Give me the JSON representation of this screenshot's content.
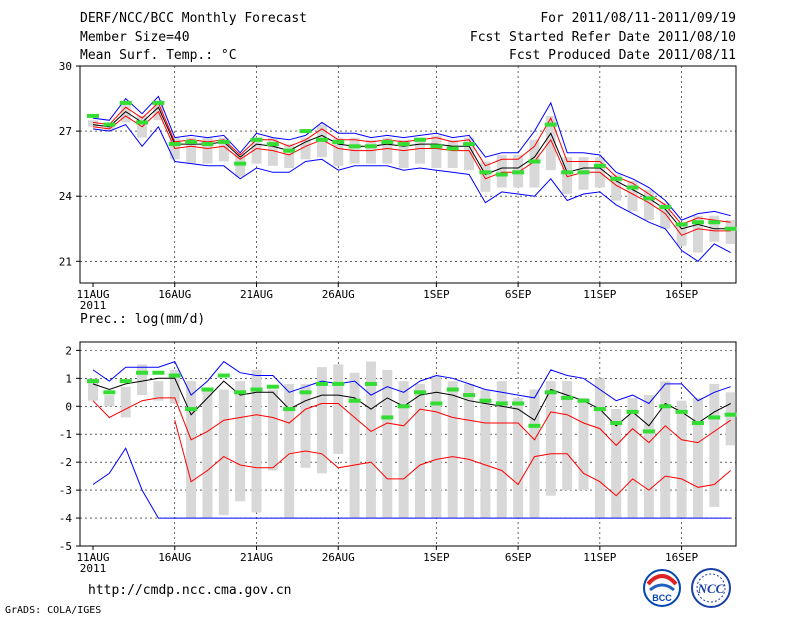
{
  "header": {
    "title": "DERF/NCC/BCC Monthly Forecast",
    "member_size": "Member Size=40",
    "variable": "Mean Surf. Temp.: °C",
    "forecast_period": "For 2011/08/11-2011/09/19",
    "started_date": "Fcst Started Refer Date 2011/08/10",
    "produced_date": "Fcst Produced Date 2011/08/11"
  },
  "footer": {
    "url": "http://cmdp.ncc.cma.gov.cn",
    "credit": "GrADS: COLA/IGES",
    "logo_bcc": "BCC",
    "logo_ncc": "NCC"
  },
  "colors": {
    "ensemble_mean": "#000000",
    "upper_lower": "#0000ff",
    "spread": "#ff0000",
    "box": "#d8d8d8",
    "median": "#33dd33"
  },
  "chart_data": [
    {
      "type": "line",
      "id": "temp",
      "title": "",
      "ylabel": "Mean Surf. Temp.: °C",
      "ylim": [
        20,
        30
      ],
      "yticks": [
        21,
        24,
        27,
        30
      ],
      "xtick_labels": [
        "11AUG",
        "16AUG",
        "21AUG",
        "26AUG",
        "1SEP",
        "6SEP",
        "11SEP",
        "16SEP"
      ],
      "xtick_index": [
        0,
        5,
        10,
        15,
        21,
        26,
        31,
        36
      ],
      "year_label": "2011",
      "series": [
        {
          "name": "max",
          "values": [
            27.6,
            27.5,
            28.5,
            27.8,
            28.6,
            26.7,
            26.8,
            26.7,
            26.8,
            26.0,
            26.9,
            26.7,
            26.6,
            26.8,
            27.4,
            26.9,
            26.9,
            26.7,
            26.8,
            26.7,
            26.8,
            26.9,
            26.7,
            26.8,
            25.8,
            26.0,
            26.0,
            27.0,
            28.3,
            26.0,
            26.0,
            25.9,
            25.1,
            24.8,
            24.4,
            23.8,
            22.9,
            23.2,
            23.3,
            23.1
          ]
        },
        {
          "name": "spread_hi",
          "values": [
            27.4,
            27.3,
            28.1,
            27.6,
            28.3,
            26.5,
            26.6,
            26.5,
            26.6,
            25.9,
            26.6,
            26.6,
            26.3,
            26.6,
            27.1,
            26.6,
            26.6,
            26.5,
            26.6,
            26.5,
            26.6,
            26.7,
            26.5,
            26.6,
            25.4,
            25.7,
            25.7,
            26.3,
            27.6,
            25.6,
            25.6,
            25.6,
            24.9,
            24.6,
            24.1,
            23.6,
            22.7,
            23.0,
            22.9,
            22.8
          ]
        },
        {
          "name": "mean",
          "values": [
            27.3,
            27.2,
            27.9,
            27.4,
            28.1,
            26.4,
            26.4,
            26.4,
            26.5,
            25.8,
            26.4,
            26.3,
            26.1,
            26.5,
            26.8,
            26.4,
            26.3,
            26.3,
            26.4,
            26.3,
            26.4,
            26.4,
            26.3,
            26.3,
            25.0,
            25.3,
            25.3,
            25.8,
            26.9,
            25.1,
            25.3,
            25.3,
            24.7,
            24.3,
            23.9,
            23.4,
            22.5,
            22.7,
            22.5,
            22.5
          ]
        },
        {
          "name": "spread_lo",
          "values": [
            27.2,
            27.1,
            27.7,
            27.2,
            27.9,
            26.2,
            26.3,
            26.2,
            26.3,
            25.7,
            26.2,
            26.1,
            25.9,
            26.3,
            26.6,
            26.2,
            26.1,
            26.1,
            26.2,
            26.1,
            26.2,
            26.2,
            26.1,
            26.1,
            24.8,
            25.1,
            25.1,
            25.6,
            26.6,
            24.9,
            25.1,
            25.1,
            24.5,
            24.1,
            23.7,
            23.2,
            22.2,
            22.5,
            22.4,
            22.4
          ]
        },
        {
          "name": "min",
          "values": [
            27.1,
            27.0,
            27.3,
            26.3,
            27.2,
            25.6,
            25.5,
            25.4,
            25.4,
            24.8,
            25.3,
            25.1,
            25.1,
            25.6,
            25.7,
            25.2,
            25.4,
            25.4,
            25.4,
            25.2,
            25.3,
            25.2,
            25.1,
            25.0,
            23.7,
            24.2,
            24.1,
            24.0,
            24.8,
            23.8,
            24.1,
            24.2,
            23.6,
            23.2,
            22.8,
            22.5,
            21.5,
            21.0,
            21.8,
            21.4
          ]
        }
      ],
      "boxes": {
        "upper": [
          27.5,
          27.4,
          28.3,
          27.7,
          28.4,
          26.7,
          26.7,
          26.7,
          26.7,
          26.0,
          26.7,
          26.7,
          26.4,
          26.7,
          27.3,
          26.7,
          26.7,
          26.6,
          26.7,
          26.6,
          26.7,
          26.8,
          26.6,
          26.7,
          25.6,
          25.9,
          25.9,
          26.6,
          27.7,
          25.8,
          25.8,
          25.8,
          25.0,
          24.7,
          24.3,
          23.7,
          22.8,
          23.1,
          23.1,
          22.9
        ],
        "lower": [
          27.2,
          27.0,
          27.4,
          26.7,
          27.5,
          25.7,
          25.5,
          25.5,
          25.6,
          24.9,
          25.5,
          25.4,
          25.3,
          25.7,
          25.8,
          25.4,
          25.5,
          25.5,
          25.5,
          25.3,
          25.5,
          25.3,
          25.3,
          25.2,
          24.2,
          24.4,
          24.4,
          24.4,
          25.2,
          24.1,
          24.3,
          24.4,
          23.8,
          23.3,
          22.9,
          22.5,
          21.7,
          21.4,
          21.9,
          21.8
        ],
        "median": [
          27.7,
          27.3,
          28.3,
          27.4,
          28.3,
          26.4,
          26.5,
          26.4,
          26.5,
          25.5,
          26.6,
          26.4,
          26.1,
          27.0,
          26.6,
          26.5,
          26.3,
          26.3,
          26.5,
          26.4,
          26.6,
          26.3,
          26.2,
          26.4,
          25.1,
          25.0,
          25.1,
          25.6,
          27.3,
          25.1,
          25.1,
          25.4,
          24.8,
          24.4,
          23.9,
          23.5,
          22.7,
          22.8,
          22.8,
          22.5
        ]
      }
    },
    {
      "type": "line",
      "id": "prec",
      "title": "",
      "ylabel": "Prec.: log(mm/d)",
      "ylim": [
        -5,
        2.3
      ],
      "yticks": [
        -5,
        -4,
        -3,
        -2,
        -1,
        0,
        1,
        2
      ],
      "xtick_labels": [
        "11AUG",
        "16AUG",
        "21AUG",
        "26AUG",
        "1SEP",
        "6SEP",
        "11SEP",
        "16SEP"
      ],
      "xtick_index": [
        0,
        5,
        10,
        15,
        21,
        26,
        31,
        36
      ],
      "year_label": "2011",
      "series": [
        {
          "name": "max",
          "values": [
            1.3,
            0.9,
            1.4,
            1.4,
            1.4,
            1.6,
            0.4,
            0.9,
            1.6,
            1.2,
            1.1,
            1.1,
            0.5,
            0.7,
            0.9,
            0.8,
            0.9,
            0.4,
            0.7,
            0.5,
            0.9,
            1.1,
            1.0,
            0.8,
            0.6,
            0.5,
            0.4,
            0.3,
            1.3,
            1.1,
            1.0,
            0.6,
            0.2,
            0.4,
            0.1,
            0.8,
            0.8,
            0.2,
            0.5,
            0.7
          ]
        },
        {
          "name": "mean",
          "values": [
            0.8,
            0.6,
            0.8,
            0.9,
            1.0,
            1.0,
            -0.3,
            0.3,
            0.9,
            0.4,
            0.5,
            0.5,
            -0.1,
            0.2,
            0.4,
            0.4,
            0.3,
            -0.1,
            0.3,
            0.0,
            0.4,
            0.5,
            0.4,
            0.2,
            0.1,
            0.0,
            -0.1,
            -0.5,
            0.6,
            0.4,
            0.2,
            -0.1,
            -0.7,
            -0.2,
            -0.7,
            0.1,
            -0.2,
            -0.6,
            -0.2,
            0.1
          ]
        },
        {
          "name": "spread_hi",
          "values": [
            0.2,
            -0.4,
            -0.1,
            0.2,
            0.3,
            0.3,
            -1.2,
            -0.9,
            -0.5,
            -0.4,
            -0.3,
            -0.4,
            -0.6,
            -0.1,
            0.1,
            0.1,
            -0.4,
            -0.9,
            -0.6,
            -0.7,
            -0.1,
            -0.2,
            -0.4,
            -0.5,
            -0.6,
            -0.6,
            -0.6,
            -1.2,
            -0.2,
            -0.3,
            -0.6,
            -0.8,
            -1.4,
            -0.8,
            -1.3,
            -0.7,
            -1.2,
            -1.3,
            -0.9,
            -0.5
          ]
        },
        {
          "name": "spread_lo",
          "values": [
            null,
            null,
            null,
            null,
            null,
            -0.5,
            -2.7,
            -2.3,
            -1.8,
            -2.1,
            -2.2,
            -2.2,
            -1.7,
            -1.6,
            -1.7,
            -2.2,
            -2.1,
            -2.0,
            -2.6,
            -2.6,
            -2.1,
            -1.9,
            -1.8,
            -1.9,
            -2.1,
            -2.3,
            -2.8,
            -1.8,
            -1.7,
            -1.7,
            -2.4,
            -2.7,
            -3.2,
            -2.6,
            -3.0,
            -2.5,
            -2.6,
            -2.9,
            -2.8,
            -2.3
          ]
        },
        {
          "name": "min",
          "values": [
            -2.8,
            -2.4,
            -1.5,
            -3.0,
            -4.0,
            -4.0,
            -4.0,
            -4.0,
            -4.0,
            -4.0,
            -4.0,
            -4.0,
            -4.0,
            -4.0,
            -4.0,
            -4.0,
            -4.0,
            -4.0,
            -4.0,
            -4.0,
            -4.0,
            -4.0,
            -4.0,
            -4.0,
            -4.0,
            -4.0,
            -4.0,
            -4.0,
            -4.0,
            -4.0,
            -4.0,
            -4.0,
            -4.0,
            -4.0,
            -4.0,
            -4.0,
            -4.0,
            -4.0,
            -4.0,
            -4.0
          ]
        }
      ],
      "boxes": {
        "upper": [
          1.0,
          0.4,
          0.7,
          1.5,
          0.9,
          1.3,
          0.9,
          0.6,
          0.6,
          0.9,
          1.3,
          0.6,
          0.8,
          0.8,
          1.4,
          1.5,
          1.2,
          1.6,
          1.3,
          0.9,
          0.8,
          1.1,
          0.9,
          0.8,
          0.6,
          0.9,
          0.3,
          0.6,
          0.9,
          0.9,
          0.3,
          1.0,
          -0.1,
          0.3,
          0.4,
          0.9,
          0.2,
          0.3,
          0.8,
          0.5
        ],
        "lower": [
          0.2,
          0.0,
          -0.4,
          0.4,
          0.2,
          0.1,
          -4.0,
          -4.0,
          -3.9,
          -3.4,
          -3.8,
          -2.3,
          -4.0,
          -2.2,
          -2.4,
          -1.7,
          -4.0,
          -4.0,
          -4.0,
          -4.0,
          -4.0,
          -4.0,
          -4.0,
          -4.0,
          -4.0,
          -4.0,
          -4.0,
          -4.0,
          -3.2,
          -3.0,
          -3.0,
          -4.0,
          -4.0,
          -4.0,
          -4.0,
          -4.0,
          -4.0,
          -4.0,
          -3.6,
          -1.4
        ],
        "median": [
          0.9,
          0.5,
          0.9,
          1.2,
          1.2,
          1.1,
          -0.1,
          0.6,
          1.1,
          0.5,
          0.6,
          0.7,
          -0.1,
          0.5,
          0.8,
          0.8,
          0.2,
          0.8,
          -0.4,
          0.0,
          0.5,
          0.1,
          0.6,
          0.4,
          0.2,
          0.1,
          0.1,
          -0.7,
          0.5,
          0.3,
          0.2,
          -0.1,
          -0.6,
          -0.2,
          -0.9,
          0.0,
          -0.2,
          -0.6,
          -0.4,
          -0.3
        ]
      }
    }
  ]
}
